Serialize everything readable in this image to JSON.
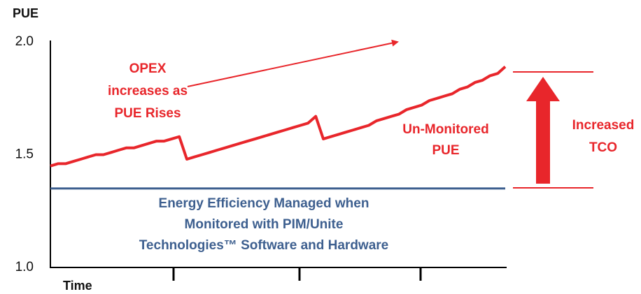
{
  "chart_data": {
    "type": "line",
    "y_label": "PUE",
    "x_label": "Time",
    "ylim": [
      1,
      2
    ],
    "yticks": [
      {
        "value": 1,
        "label": "1.0"
      },
      1.5,
      {
        "value": 2,
        "label": "2.0"
      }
    ],
    "categories": [
      null,
      null,
      null,
      null,
      null,
      null,
      null,
      null,
      null,
      null,
      null,
      null,
      null,
      null,
      null,
      null,
      null,
      null,
      null,
      null,
      null,
      null,
      null,
      null,
      null,
      null,
      null,
      null,
      null,
      null,
      null,
      null,
      null,
      null,
      null,
      null,
      null,
      null,
      null,
      null,
      null,
      null,
      null,
      null,
      null,
      null,
      null,
      null,
      null,
      null,
      null,
      null,
      null,
      null,
      null,
      null,
      null,
      null,
      null,
      null,
      null
    ],
    "series": [
      {
        "color": "#e8262b",
        "values": [
          1.45,
          1.46,
          1.46,
          1.47,
          1.48,
          1.49,
          1.5,
          1.5,
          1.51,
          1.52,
          1.53,
          1.53,
          1.54,
          1.55,
          1.56,
          1.56,
          1.57,
          1.58,
          1.48,
          1.49,
          1.5,
          1.51,
          1.52,
          1.53,
          1.54,
          1.55,
          1.56,
          1.57,
          1.58,
          1.59,
          1.6,
          1.61,
          1.62,
          1.63,
          1.64,
          1.67,
          1.57,
          1.58,
          1.59,
          1.6,
          1.61,
          1.62,
          1.63,
          1.65,
          1.66,
          1.67,
          1.68,
          1.7,
          1.71,
          1.72,
          1.74,
          1.75,
          1.76,
          1.77,
          1.79,
          1.8,
          1.82,
          1.83,
          1.85,
          1.86,
          1.89
        ]
      },
      {
        "color": "#3d5f8f",
        "values": [
          1.35,
          1.35,
          1.35,
          1.35,
          1.35,
          1.35,
          1.35,
          1.35,
          1.35,
          1.35,
          1.35,
          1.35,
          1.35,
          1.35,
          1.35,
          1.35,
          1.35,
          1.35,
          1.35,
          1.35,
          1.35,
          1.35,
          1.35,
          1.35,
          1.35,
          1.35,
          1.35,
          1.35,
          1.35,
          1.35,
          1.35,
          1.35,
          1.35,
          1.35,
          1.35,
          1.35,
          1.35,
          1.35,
          1.35,
          1.35,
          1.35,
          1.35,
          1.35,
          1.35,
          1.35,
          1.35,
          1.35,
          1.35,
          1.35,
          1.35,
          1.35,
          1.35,
          1.35,
          1.35,
          1.35,
          1.35,
          1.35,
          1.35,
          1.35,
          1.35,
          1.35
        ]
      }
    ],
    "annotations": {
      "opex": [
        "OPEX",
        "increases as",
        "PUE Rises"
      ],
      "unmonitored": [
        "Un-Monitored",
        "PUE"
      ],
      "tco": [
        "Increased",
        "TCO"
      ],
      "managed": [
        "Energy Efficiency Managed when",
        "Monitored with PIM/Unite",
        "Technologies™ Software and Hardware"
      ]
    }
  }
}
